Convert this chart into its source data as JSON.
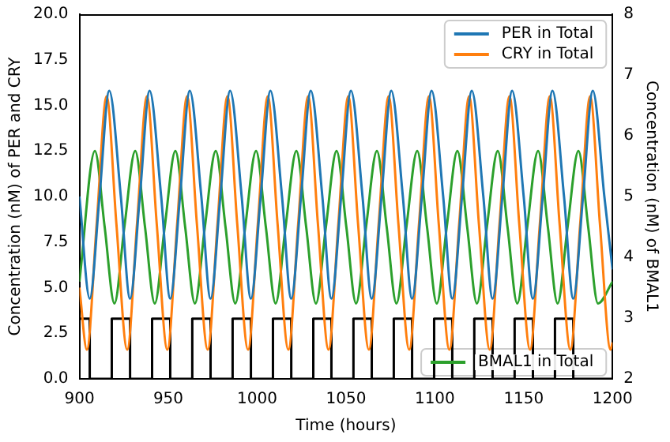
{
  "chart_data": {
    "type": "line",
    "xlabel": "Time (hours)",
    "ylabel": "Concentration (nM) of PER and CRY",
    "y2label": "Concentration (nM) of BMAL1",
    "xlim": [
      900,
      1200
    ],
    "xticks": [
      900,
      950,
      1000,
      1050,
      1100,
      1150,
      1200
    ],
    "ylim": [
      0,
      20
    ],
    "yticks": [
      {
        "value": 0,
        "label": "0.0"
      },
      {
        "value": 2.5,
        "label": "2.5"
      },
      {
        "value": 5,
        "label": "5.0"
      },
      {
        "value": 7.5,
        "label": "7.5"
      },
      {
        "value": 10,
        "label": "10.0"
      },
      {
        "value": 12.5,
        "label": "12.5"
      },
      {
        "value": 15,
        "label": "15.0"
      },
      {
        "value": 17.5,
        "label": "17.5"
      },
      {
        "value": 20,
        "label": "20.0"
      }
    ],
    "y2lim": [
      2,
      8
    ],
    "y2ticks": [
      2,
      3,
      4,
      5,
      6,
      7,
      8
    ],
    "legend": "top right",
    "series": [
      {
        "name": "PER in Total",
        "color": "#1f77b4",
        "x": [
          900,
          905.8,
          911.3,
          916.8,
          923.3,
          928.5,
          934,
          939.5,
          946,
          951.1,
          956.6,
          962.1,
          968.6,
          973.8,
          979.3,
          984.8,
          991.3,
          996.5,
          1002,
          1007.5,
          1014,
          1019.2,
          1024.7,
          1030.2,
          1036.7,
          1041.8,
          1047.3,
          1052.8,
          1059.3,
          1064.5,
          1070,
          1075.5,
          1082,
          1087.2,
          1092.7,
          1098.2,
          1104.7,
          1109.8,
          1115.3,
          1120.8,
          1127.3,
          1132.5,
          1138,
          1143.5,
          1150,
          1155.2,
          1160.7,
          1166.2,
          1172.7,
          1177.9,
          1183.4,
          1188.9,
          1195.4,
          1200
        ],
        "values": [
          10,
          4.4,
          10,
          15.8,
          10,
          4.4,
          10,
          15.8,
          10,
          4.4,
          10,
          15.8,
          10,
          4.4,
          10,
          15.8,
          10,
          4.4,
          10,
          15.8,
          10,
          4.4,
          10,
          15.8,
          10,
          4.4,
          10,
          15.8,
          10,
          4.4,
          10,
          15.8,
          10,
          4.4,
          10,
          15.8,
          10,
          4.4,
          10,
          15.8,
          10,
          4.4,
          10,
          15.8,
          10,
          4.4,
          10,
          15.8,
          10,
          4.4,
          10,
          15.8,
          10,
          6
        ]
      },
      {
        "name": "CRY in Total",
        "color": "#ff7f0e",
        "x": [
          900,
          904.2,
          909.7,
          915.3,
          920.8,
          926.9,
          932.4,
          938,
          943.5,
          949.5,
          955,
          960.6,
          966.1,
          972.2,
          977.7,
          983.3,
          988.8,
          994.9,
          1000.4,
          1006,
          1011.5,
          1017.6,
          1023.1,
          1028.7,
          1034.2,
          1040.2,
          1045.7,
          1051.3,
          1056.8,
          1062.9,
          1068.4,
          1074,
          1079.5,
          1085.6,
          1091.1,
          1096.7,
          1102.2,
          1108.2,
          1113.7,
          1119.3,
          1124.8,
          1130.9,
          1136.4,
          1142,
          1147.5,
          1153.6,
          1159.1,
          1164.7,
          1170.2,
          1176.3,
          1181.8,
          1187.4,
          1192.9,
          1198.9,
          1200
        ],
        "values": [
          5,
          1.6,
          8.5,
          15.5,
          8.5,
          1.6,
          8.5,
          15.5,
          8.5,
          1.6,
          8.5,
          15.5,
          8.5,
          1.6,
          8.5,
          15.5,
          8.5,
          1.6,
          8.5,
          15.5,
          8.5,
          1.6,
          8.5,
          15.5,
          8.5,
          1.6,
          8.5,
          15.5,
          8.5,
          1.6,
          8.5,
          15.5,
          8.5,
          1.6,
          8.5,
          15.5,
          8.5,
          1.6,
          8.5,
          15.5,
          8.5,
          1.6,
          8.5,
          15.5,
          8.5,
          1.6,
          8.5,
          15.5,
          8.5,
          1.6,
          8.5,
          15.5,
          8.5,
          1.6,
          2
        ]
      },
      {
        "name": "BMAL1 in Total",
        "color": "#2ca02c",
        "axis": "y2",
        "x": [
          900,
          908.7,
          914.2,
          919.7,
          925.3,
          931.4,
          936.9,
          942.4,
          948,
          954,
          959.5,
          965,
          970.6,
          976.7,
          982.2,
          987.7,
          993.3,
          999.4,
          1004.9,
          1010.4,
          1016,
          1022.1,
          1027.6,
          1033.1,
          1038.7,
          1044.7,
          1050.2,
          1055.7,
          1061.3,
          1067.4,
          1072.9,
          1078.4,
          1084,
          1090.1,
          1095.6,
          1101.1,
          1106.7,
          1112.7,
          1118.2,
          1123.7,
          1129.3,
          1135.4,
          1140.9,
          1146.4,
          1152,
          1158.1,
          1163.6,
          1169.1,
          1174.7,
          1180.8,
          1186.3,
          1191.8,
          1200
        ],
        "values": [
          3.6,
          5.75,
          4.5,
          3.24,
          4.5,
          5.75,
          4.5,
          3.24,
          4.5,
          5.75,
          4.5,
          3.24,
          4.5,
          5.75,
          4.5,
          3.24,
          4.5,
          5.75,
          4.5,
          3.24,
          4.5,
          5.75,
          4.5,
          3.24,
          4.5,
          5.75,
          4.5,
          3.24,
          4.5,
          5.75,
          4.5,
          3.24,
          4.5,
          5.75,
          4.5,
          3.24,
          4.5,
          5.75,
          4.5,
          3.24,
          4.5,
          5.75,
          4.5,
          3.24,
          4.5,
          5.75,
          4.5,
          3.24,
          4.5,
          5.75,
          4.5,
          3.24,
          3.6
        ]
      },
      {
        "type": "step",
        "color": "#000000",
        "x": [
          900,
          905.8,
          918.2,
          928.5,
          940.9,
          951.1,
          963.5,
          973.8,
          986.2,
          996.5,
          1008.9,
          1019.2,
          1031.6,
          1041.8,
          1054.2,
          1064.5,
          1076.9,
          1087.2,
          1099.6,
          1109.8,
          1122.2,
          1132.5,
          1144.9,
          1155.2,
          1167.6,
          1177.9,
          1190.3,
          1200
        ],
        "values": [
          0,
          3.3,
          0,
          3.3,
          0,
          3.3,
          0,
          3.3,
          0,
          3.3,
          0,
          3.3,
          0,
          3.3,
          0,
          3.3,
          0,
          3.3,
          0,
          3.3,
          0,
          3.3,
          0,
          3.3,
          0,
          3.3,
          0,
          0
        ]
      }
    ]
  }
}
